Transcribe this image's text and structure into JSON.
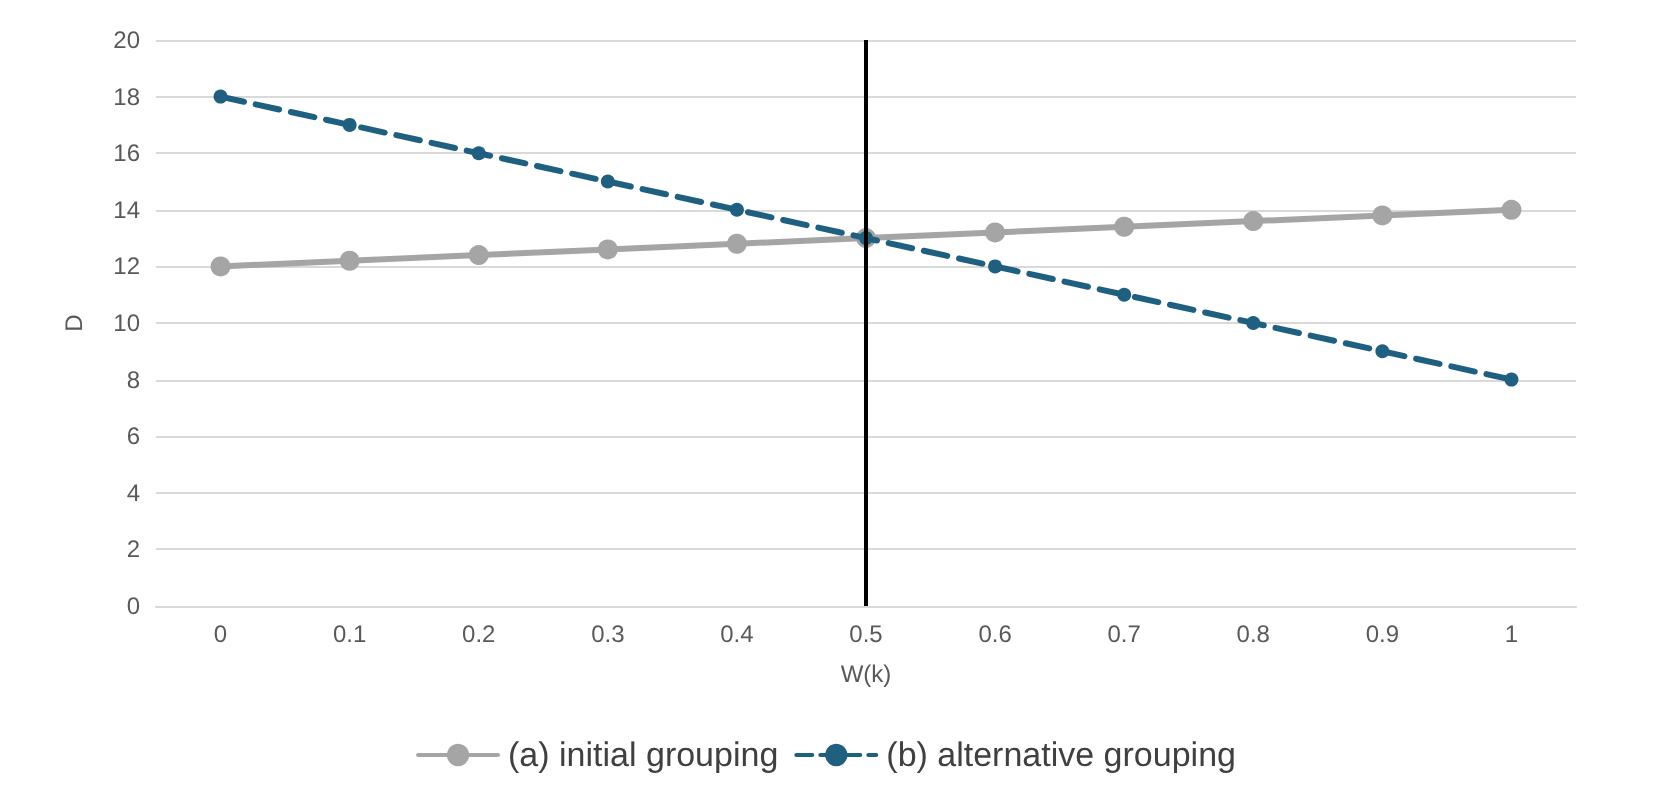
{
  "chart_data": {
    "type": "line",
    "xlabel": "W(k)",
    "ylabel": "D",
    "categories": [
      "0",
      "0.1",
      "0.2",
      "0.3",
      "0.4",
      "0.5",
      "0.6",
      "0.7",
      "0.8",
      "0.9",
      "1"
    ],
    "series": [
      {
        "name": "(a) initial grouping",
        "color": "#a5a5a5",
        "values": [
          12,
          12.2,
          12.4,
          12.6,
          12.8,
          13,
          13.2,
          13.4,
          13.6,
          13.8,
          14
        ],
        "line_style": "solid"
      },
      {
        "name": "(b) alternative grouping",
        "color": "#1f5f7f",
        "values": [
          18,
          17,
          16,
          15,
          14,
          13,
          12,
          11,
          10,
          9,
          8
        ],
        "line_style": "dashed"
      }
    ],
    "ylim": [
      0,
      20
    ],
    "yticks": [
      0,
      2,
      4,
      6,
      8,
      10,
      12,
      14,
      16,
      18,
      20
    ],
    "ref_lines": [
      {
        "axis": "x",
        "value": "0.5",
        "color": "#000000"
      }
    ],
    "grid": "y",
    "legend": "bottom",
    "marker": "circle"
  }
}
